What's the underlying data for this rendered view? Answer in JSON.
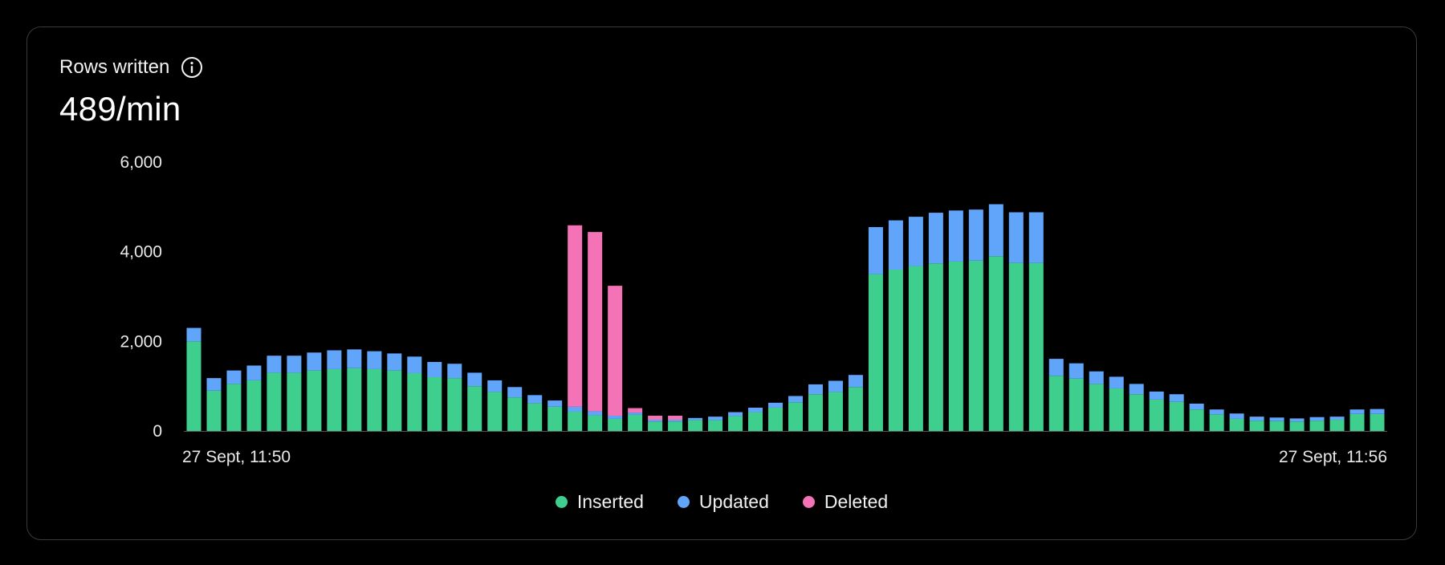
{
  "card": {
    "title": "Rows written",
    "value": "489/min"
  },
  "colors": {
    "inserted": "#3ecf8e",
    "updated": "#60a5fa",
    "deleted": "#f472b6",
    "axis": "#555555"
  },
  "icons": {
    "info": "info-circle-icon"
  },
  "chart_data": {
    "type": "bar",
    "stacked": true,
    "ylim": [
      0,
      6000
    ],
    "yticks": [
      "0",
      "2,000",
      "4,000",
      "6,000"
    ],
    "x_start_label": "27 Sept, 11:50",
    "x_end_label": "27 Sept, 11:56",
    "series": [
      {
        "name": "Inserted",
        "values": [
          2000,
          900,
          1050,
          1130,
          1300,
          1300,
          1350,
          1380,
          1400,
          1380,
          1350,
          1290,
          1200,
          1180,
          1000,
          870,
          750,
          620,
          540,
          430,
          350,
          270,
          360,
          210,
          210,
          240,
          240,
          330,
          420,
          520,
          640,
          820,
          870,
          980,
          3500,
          3600,
          3680,
          3740,
          3780,
          3800,
          3900,
          3750,
          3750,
          1230,
          1170,
          1050,
          950,
          820,
          700,
          650,
          480,
          370,
          270,
          230,
          220,
          210,
          230,
          250,
          380,
          380
        ]
      },
      {
        "name": "Updated",
        "values": [
          300,
          280,
          300,
          330,
          380,
          380,
          400,
          420,
          420,
          400,
          380,
          370,
          340,
          320,
          300,
          260,
          230,
          180,
          140,
          110,
          90,
          70,
          50,
          40,
          40,
          50,
          80,
          90,
          100,
          110,
          140,
          220,
          250,
          270,
          1050,
          1100,
          1100,
          1130,
          1140,
          1140,
          1160,
          1130,
          1130,
          380,
          340,
          280,
          260,
          230,
          180,
          170,
          130,
          110,
          120,
          90,
          80,
          70,
          80,
          70,
          100,
          110
        ]
      },
      {
        "name": "Deleted",
        "values": [
          0,
          0,
          0,
          0,
          0,
          0,
          0,
          0,
          0,
          0,
          0,
          0,
          0,
          0,
          0,
          0,
          0,
          0,
          0,
          4050,
          4000,
          2900,
          100,
          90,
          90,
          0,
          0,
          0,
          0,
          0,
          0,
          0,
          0,
          0,
          0,
          0,
          0,
          0,
          0,
          0,
          0,
          0,
          0,
          0,
          0,
          0,
          0,
          0,
          0,
          0,
          0,
          0,
          0,
          0,
          0,
          0,
          0,
          0,
          0,
          0
        ]
      }
    ]
  }
}
